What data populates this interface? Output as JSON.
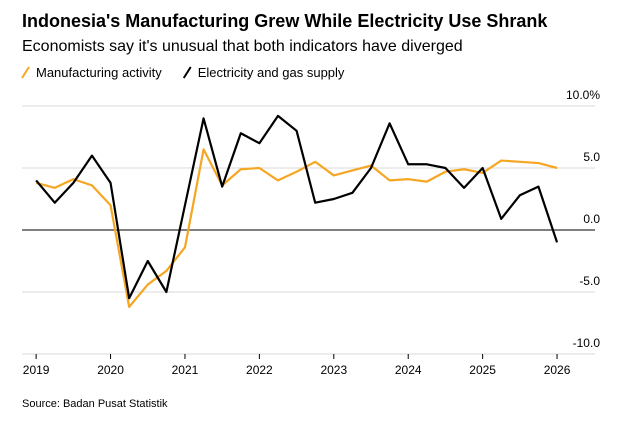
{
  "chart_data": {
    "type": "line",
    "title": "Indonesia's Manufacturing Grew While Electricity Use Shrank",
    "subtitle": "Economists say it's unusual that both indicators have diverged",
    "source": "Source: Badan Pusat Statistik",
    "x": [
      2019,
      2019.25,
      2019.5,
      2019.75,
      2020,
      2020.25,
      2020.5,
      2020.75,
      2021,
      2021.25,
      2021.5,
      2021.75,
      2022,
      2022.25,
      2022.5,
      2022.75,
      2023,
      2023.25,
      2023.5,
      2023.75,
      2024,
      2024.25,
      2024.5,
      2024.75,
      2025,
      2025.25,
      2025.5,
      2025.75,
      2026
    ],
    "series": [
      {
        "name": "Manufacturing activity",
        "color": "#f5a623",
        "values": [
          3.8,
          3.4,
          4.1,
          3.6,
          2.0,
          -6.2,
          -4.4,
          -3.3,
          -1.4,
          6.5,
          3.6,
          4.9,
          5.0,
          4.0,
          4.7,
          5.5,
          4.4,
          4.8,
          5.2,
          4.0,
          4.1,
          3.9,
          4.7,
          4.9,
          4.6,
          5.6,
          5.5,
          5.4,
          5.0
        ]
      },
      {
        "name": "Electricity and gas supply",
        "color": "#000000",
        "values": [
          4.0,
          2.2,
          3.8,
          6.0,
          3.8,
          -5.5,
          -2.5,
          -5.0,
          2.0,
          9.0,
          3.5,
          7.8,
          7.0,
          9.2,
          8.0,
          2.2,
          2.5,
          3.0,
          5.0,
          8.6,
          5.3,
          5.3,
          5.0,
          3.4,
          5.0,
          0.9,
          2.8,
          3.5,
          -1.0
        ]
      }
    ],
    "xlim": [
      2018.81,
      2026.51
    ],
    "xticks": [
      2019,
      2020,
      2021,
      2022,
      2023,
      2024,
      2025,
      2026
    ],
    "ylim": [
      -10,
      10
    ],
    "yticks": [
      {
        "value": 10,
        "label": "10.0%"
      },
      {
        "value": 5,
        "label": "5.0"
      },
      {
        "value": 0,
        "label": "0.0"
      },
      {
        "value": -5,
        "label": "-5.0"
      },
      {
        "value": -10,
        "label": "-10.0"
      }
    ],
    "grid": true
  }
}
